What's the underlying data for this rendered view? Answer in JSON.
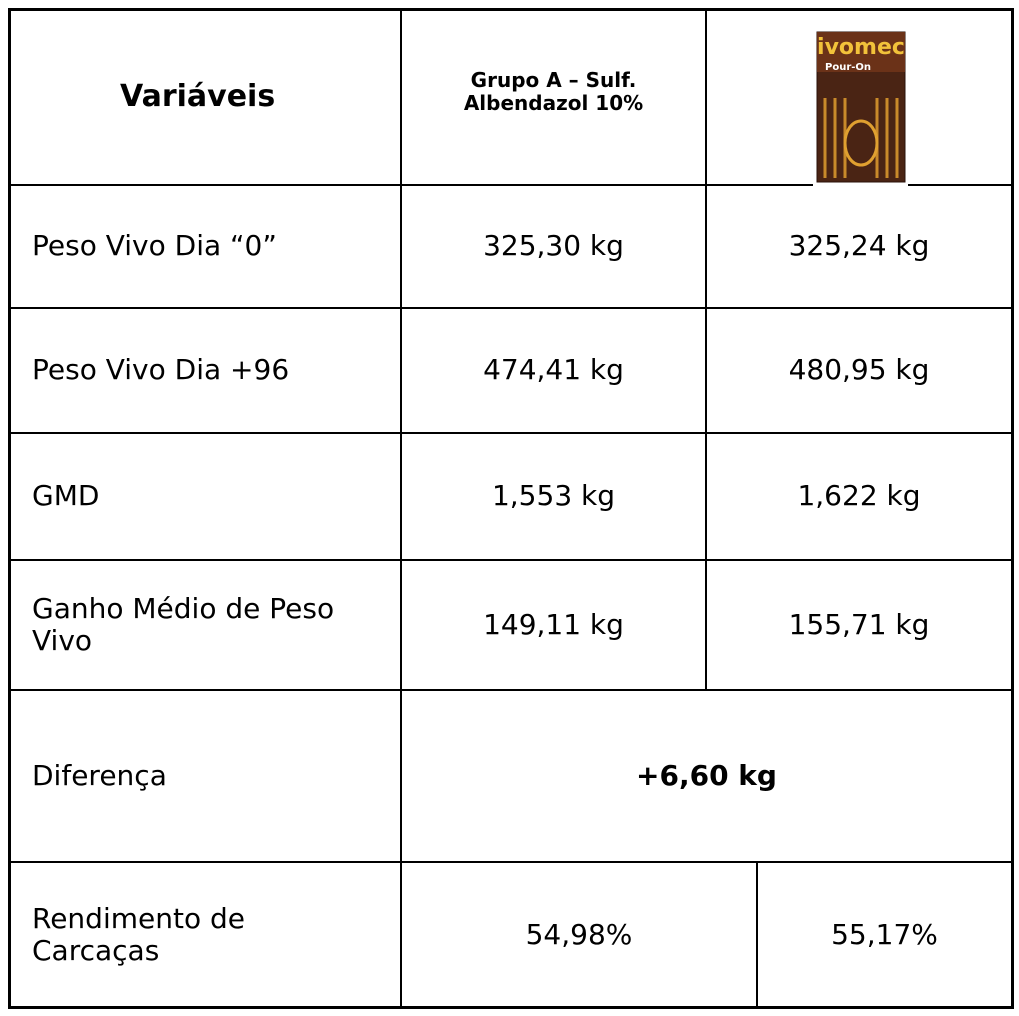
{
  "table": {
    "header": [
      "Variáveis",
      "Grupo A – Sulf. Albendazol 10%"
    ],
    "header_image": {
      "brand": "ivomec",
      "subtitle": "Pour-On"
    },
    "rows": [
      [
        "Peso Vivo Dia “0”",
        "325,30 kg",
        "325,24 kg"
      ],
      [
        "Peso Vivo Dia +96",
        "474,41 kg",
        "480,95 kg"
      ],
      [
        "GMD",
        "1,553 kg",
        "1,622 kg"
      ],
      [
        "Ganho Médio de Peso Vivo",
        "149,11 kg",
        "155,71 kg"
      ],
      [
        "Diferença",
        "+6,60 kg"
      ],
      [
        "Rendimento de Carcaças",
        "54,98%",
        "55,17%"
      ]
    ]
  }
}
